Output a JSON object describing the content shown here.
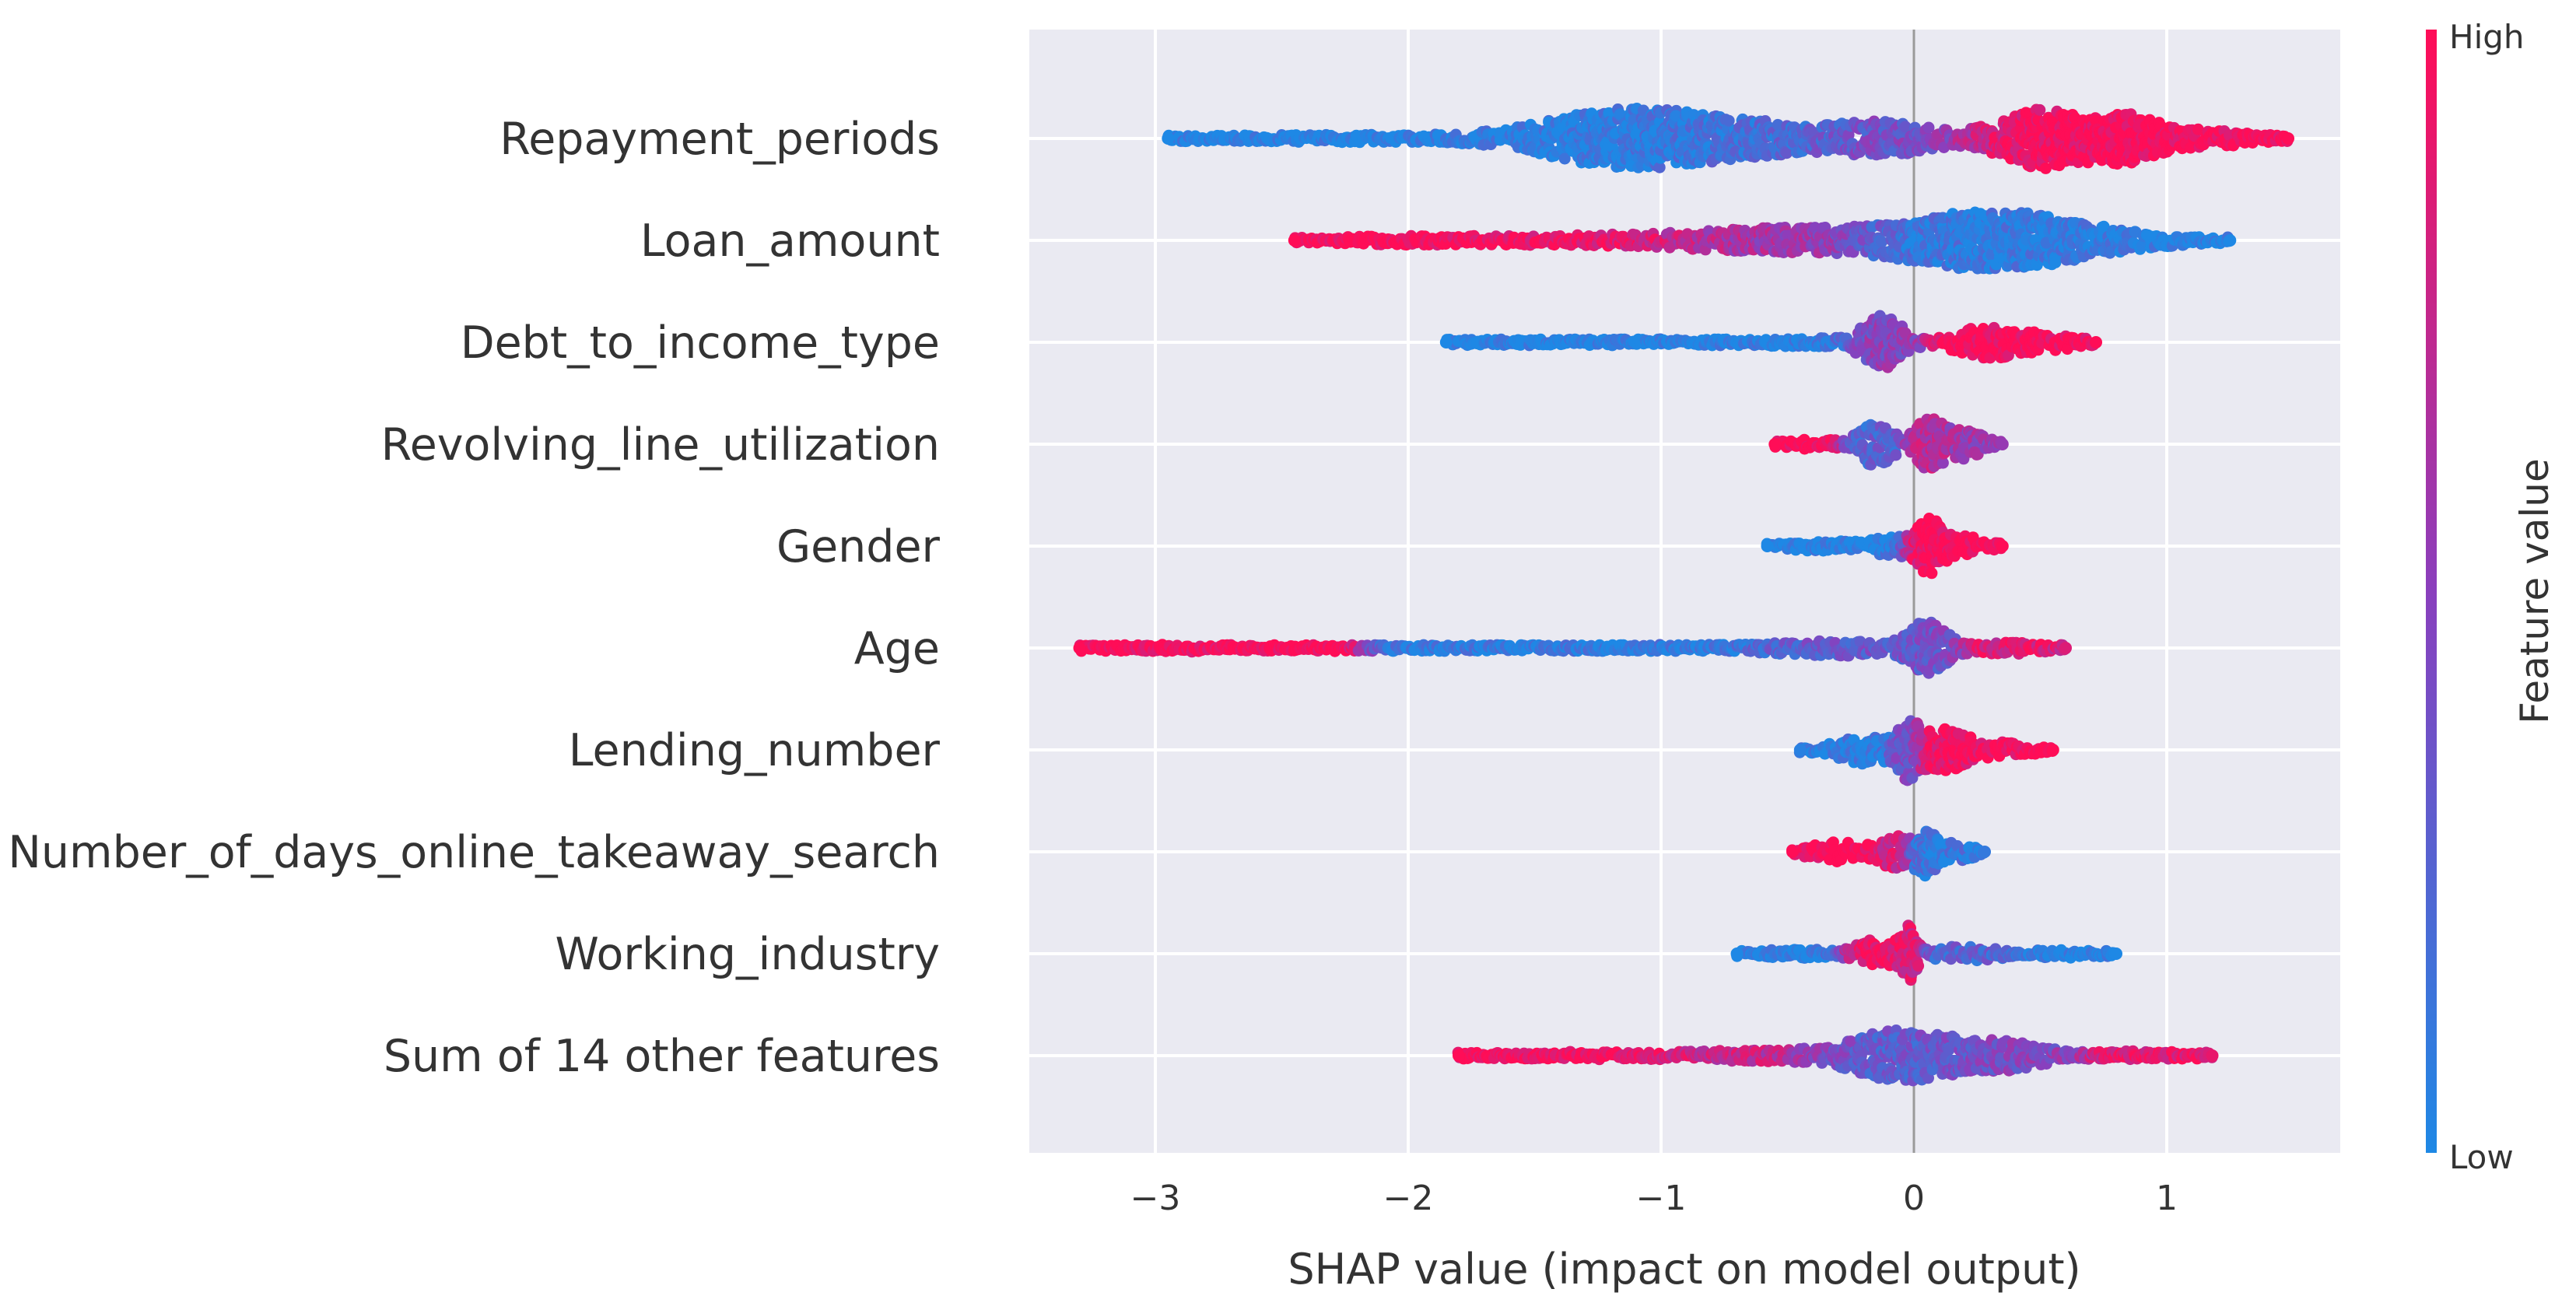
{
  "chart_data": {
    "type": "scatter",
    "subtype": "shap-beeswarm",
    "title": "",
    "xlabel": "SHAP value (impact on model output)",
    "ylabel": "",
    "xlim": [
      -3.5,
      1.7
    ],
    "xticks": [
      -3,
      -2,
      -1,
      0,
      1
    ],
    "xtick_labels": [
      "−3",
      "−2",
      "−1",
      "0",
      "1"
    ],
    "grid": true,
    "colorbar": {
      "title": "Feature value",
      "high_label": "High",
      "low_label": "Low",
      "low_color": "#1e88e5",
      "high_color": "#ff0d57",
      "mid_color": "#8a3fbd"
    },
    "background_color": "#eaeaf2",
    "features": [
      {
        "name": "Repayment_periods",
        "min": -2.95,
        "max": 1.48,
        "clusters": [
          {
            "center": -2.3,
            "spread": 0.4,
            "amp": 0.06,
            "color": 0.0
          },
          {
            "center": -1.15,
            "spread": 0.3,
            "amp": 0.6,
            "color": 0.05
          },
          {
            "center": -0.55,
            "spread": 0.35,
            "amp": 0.28,
            "color": 0.25
          },
          {
            "center": -0.1,
            "spread": 0.15,
            "amp": 0.25,
            "color": 0.45
          },
          {
            "center": 0.3,
            "spread": 0.12,
            "amp": 0.2,
            "color": 0.75
          },
          {
            "center": 0.5,
            "spread": 0.1,
            "amp": 0.55,
            "color": 1.0
          },
          {
            "center": 0.8,
            "spread": 0.15,
            "amp": 0.58,
            "color": 1.0
          },
          {
            "center": 1.2,
            "spread": 0.15,
            "amp": 0.15,
            "color": 1.0
          }
        ]
      },
      {
        "name": "Loan_amount",
        "min": -2.45,
        "max": 1.25,
        "clusters": [
          {
            "center": -2.0,
            "spread": 0.3,
            "amp": 0.07,
            "color": 1.0
          },
          {
            "center": -1.2,
            "spread": 0.35,
            "amp": 0.09,
            "color": 0.95
          },
          {
            "center": -0.5,
            "spread": 0.3,
            "amp": 0.25,
            "color": 0.6
          },
          {
            "center": 0.2,
            "spread": 0.25,
            "amp": 0.55,
            "color": 0.08
          },
          {
            "center": 0.55,
            "spread": 0.2,
            "amp": 0.3,
            "color": 0.05
          },
          {
            "center": 0.9,
            "spread": 0.2,
            "amp": 0.1,
            "color": 0.0
          }
        ]
      },
      {
        "name": "Debt_to_income_type",
        "min": -1.85,
        "max": 0.72,
        "clusters": [
          {
            "center": -1.1,
            "spread": 0.45,
            "amp": 0.04,
            "color": 0.0
          },
          {
            "center": -0.4,
            "spread": 0.2,
            "amp": 0.06,
            "color": 0.05
          },
          {
            "center": -0.12,
            "spread": 0.07,
            "amp": 0.6,
            "color": 0.5
          },
          {
            "center": 0.3,
            "spread": 0.12,
            "amp": 0.35,
            "color": 1.0
          },
          {
            "center": 0.55,
            "spread": 0.1,
            "amp": 0.15,
            "color": 1.0
          }
        ]
      },
      {
        "name": "Revolving_line_utilization",
        "min": -0.55,
        "max": 0.35,
        "clusters": [
          {
            "center": -0.4,
            "spread": 0.08,
            "amp": 0.1,
            "color": 1.0
          },
          {
            "center": -0.15,
            "spread": 0.06,
            "amp": 0.5,
            "color": 0.25
          },
          {
            "center": 0.06,
            "spread": 0.05,
            "amp": 0.55,
            "color": 0.7
          },
          {
            "center": 0.2,
            "spread": 0.07,
            "amp": 0.3,
            "color": 0.55
          }
        ]
      },
      {
        "name": "Gender",
        "min": -0.58,
        "max": 0.35,
        "clusters": [
          {
            "center": -0.35,
            "spread": 0.12,
            "amp": 0.1,
            "color": 0.0
          },
          {
            "center": -0.1,
            "spread": 0.06,
            "amp": 0.22,
            "color": 0.05
          },
          {
            "center": 0.06,
            "spread": 0.05,
            "amp": 0.6,
            "color": 1.0
          },
          {
            "center": 0.22,
            "spread": 0.07,
            "amp": 0.2,
            "color": 1.0
          }
        ]
      },
      {
        "name": "Age",
        "min": -3.3,
        "max": 0.6,
        "clusters": [
          {
            "center": -2.9,
            "spread": 0.2,
            "amp": 0.06,
            "color": 1.0
          },
          {
            "center": -2.3,
            "spread": 0.02,
            "amp": 0.07,
            "color": 1.0
          },
          {
            "center": -0.9,
            "spread": 0.35,
            "amp": 0.05,
            "color": 0.05
          },
          {
            "center": -0.3,
            "spread": 0.2,
            "amp": 0.15,
            "color": 0.35
          },
          {
            "center": 0.05,
            "spread": 0.07,
            "amp": 0.55,
            "color": 0.35
          },
          {
            "center": 0.35,
            "spread": 0.15,
            "amp": 0.12,
            "color": 0.85
          }
        ]
      },
      {
        "name": "Lending_number",
        "min": -0.45,
        "max": 0.55,
        "clusters": [
          {
            "center": -0.2,
            "spread": 0.1,
            "amp": 0.3,
            "color": 0.05
          },
          {
            "center": -0.02,
            "spread": 0.04,
            "amp": 0.55,
            "color": 0.4
          },
          {
            "center": 0.12,
            "spread": 0.08,
            "amp": 0.45,
            "color": 0.95
          },
          {
            "center": 0.35,
            "spread": 0.1,
            "amp": 0.15,
            "color": 1.0
          }
        ]
      },
      {
        "name": "Number_of_days_online_takeaway_search",
        "min": -0.48,
        "max": 0.28,
        "clusters": [
          {
            "center": -0.3,
            "spread": 0.1,
            "amp": 0.2,
            "color": 1.0
          },
          {
            "center": -0.08,
            "spread": 0.05,
            "amp": 0.35,
            "color": 0.8
          },
          {
            "center": 0.05,
            "spread": 0.04,
            "amp": 0.55,
            "color": 0.1
          },
          {
            "center": 0.18,
            "spread": 0.05,
            "amp": 0.2,
            "color": 0.1
          }
        ]
      },
      {
        "name": "Working_industry",
        "min": -0.7,
        "max": 0.8,
        "clusters": [
          {
            "center": -0.45,
            "spread": 0.15,
            "amp": 0.08,
            "color": 0.0
          },
          {
            "center": -0.15,
            "spread": 0.07,
            "amp": 0.3,
            "color": 1.0
          },
          {
            "center": -0.02,
            "spread": 0.03,
            "amp": 0.55,
            "color": 0.85
          },
          {
            "center": 0.2,
            "spread": 0.12,
            "amp": 0.15,
            "color": 0.25
          },
          {
            "center": 0.6,
            "spread": 0.12,
            "amp": 0.07,
            "color": 0.0
          }
        ]
      },
      {
        "name": "Sum of 14 other features",
        "min": -1.8,
        "max": 1.18,
        "clusters": [
          {
            "center": -1.3,
            "spread": 0.25,
            "amp": 0.06,
            "color": 1.0
          },
          {
            "center": -0.6,
            "spread": 0.25,
            "amp": 0.1,
            "color": 0.75
          },
          {
            "center": -0.05,
            "spread": 0.18,
            "amp": 0.55,
            "color": 0.3
          },
          {
            "center": 0.35,
            "spread": 0.15,
            "amp": 0.3,
            "color": 0.45
          },
          {
            "center": 0.9,
            "spread": 0.15,
            "amp": 0.08,
            "color": 0.9
          }
        ]
      }
    ]
  }
}
